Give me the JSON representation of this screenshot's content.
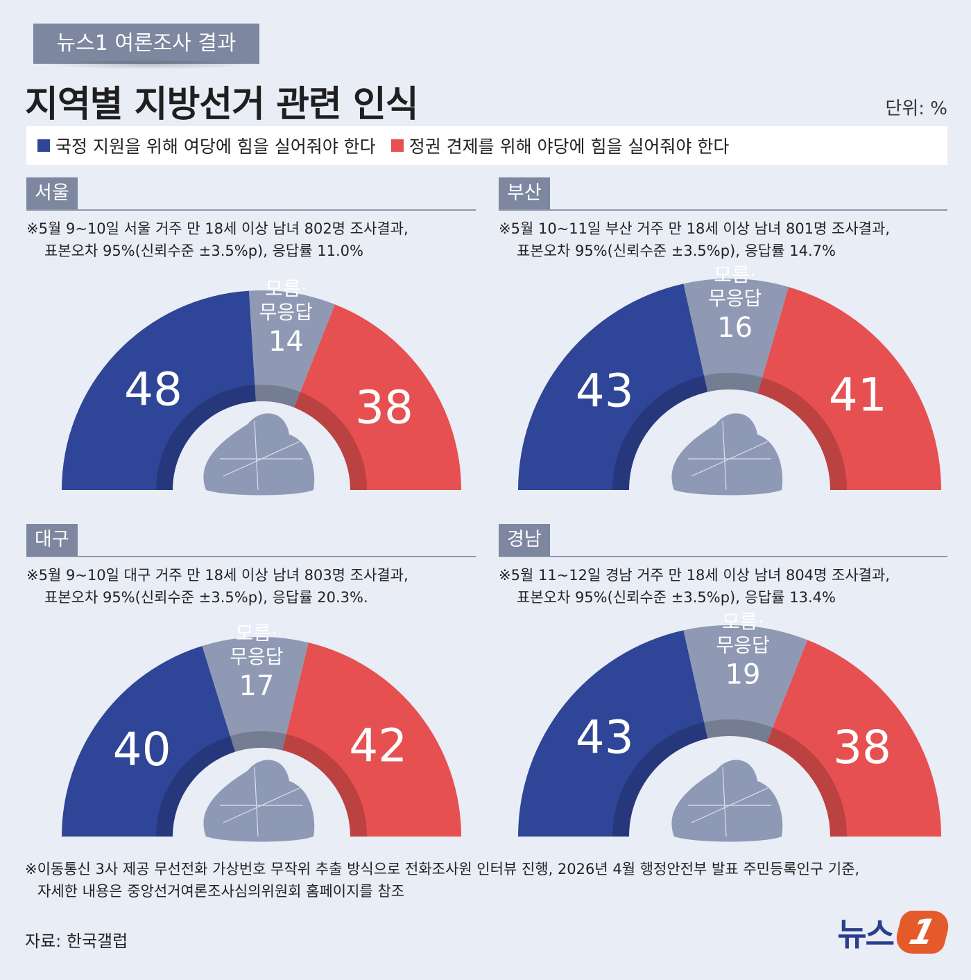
{
  "header": {
    "badge": "뉴스1 여론조사 결과",
    "title": "지역별 지방선거 관련 인식",
    "unit": "단위: %"
  },
  "legend": {
    "ruling": "국정 지원을 위해 여당에 힘을 실어줘야 한다",
    "opposition": "정권 견제를 위해 야당에 힘을 실어줘야 한다"
  },
  "colors": {
    "ruling": "#2f4597",
    "unknown": "#8f99b3",
    "opposition": "#e65050",
    "map": "#8e99b6"
  },
  "center_label": [
    "모름·",
    "무응답"
  ],
  "chart_data": [
    {
      "type": "pie",
      "region": "서울",
      "note": [
        "※5월 9~10일 서울 거주 만 18세 이상 남녀 802명 조사결과,",
        "표본오차 95%(신뢰수준 ±3.5%p), 응답률 11.0%"
      ],
      "categories": [
        "국정 지원을 위해 여당에 힘을 실어줘야 한다",
        "모름·무응답",
        "정권 견제를 위해 야당에 힘을 실어줘야 한다"
      ],
      "values": [
        48,
        14,
        38
      ]
    },
    {
      "type": "pie",
      "region": "부산",
      "note": [
        "※5월 10~11일 부산 거주 만 18세 이상 남녀 801명 조사결과,",
        "표본오차 95%(신뢰수준 ±3.5%p), 응답률  14.7%"
      ],
      "categories": [
        "국정 지원을 위해 여당에 힘을 실어줘야 한다",
        "모름·무응답",
        "정권 견제를 위해 야당에 힘을 실어줘야 한다"
      ],
      "values": [
        43,
        16,
        41
      ]
    },
    {
      "type": "pie",
      "region": "대구",
      "note": [
        "※5월 9~10일 대구 거주 만 18세 이상 남녀 803명 조사결과,",
        "표본오차 95%(신뢰수준 ±3.5%p), 응답률 20.3%."
      ],
      "categories": [
        "국정 지원을 위해 여당에 힘을 실어줘야 한다",
        "모름·무응답",
        "정권 견제를 위해 야당에 힘을 실어줘야 한다"
      ],
      "values": [
        40,
        17,
        42
      ]
    },
    {
      "type": "pie",
      "region": "경남",
      "note": [
        "※5월 11~12일 경남 거주 만 18세 이상 남녀 804명 조사결과,",
        "표본오차 95%(신뢰수준 ±3.5%p), 응답률 13.4%"
      ],
      "categories": [
        "국정 지원을 위해 여당에 힘을 실어줘야 한다",
        "모름·무응답",
        "정권 견제를 위해 야당에 힘을 실어줘야 한다"
      ],
      "values": [
        43,
        19,
        38
      ]
    }
  ],
  "footer": {
    "footnote": [
      "※이동통신 3사 제공 무선전화 가상번호 무작위 추출 방식으로 전화조사원 인터뷰 진행, 2026년 4월 행정안전부 발표 주민등록인구 기준,",
      "자세한 내용은 중앙선거여론조사심의위원회 홈페이지를 참조"
    ],
    "source": "자료: 한국갤럽",
    "logo_text": "뉴스",
    "logo_mark": "1"
  }
}
